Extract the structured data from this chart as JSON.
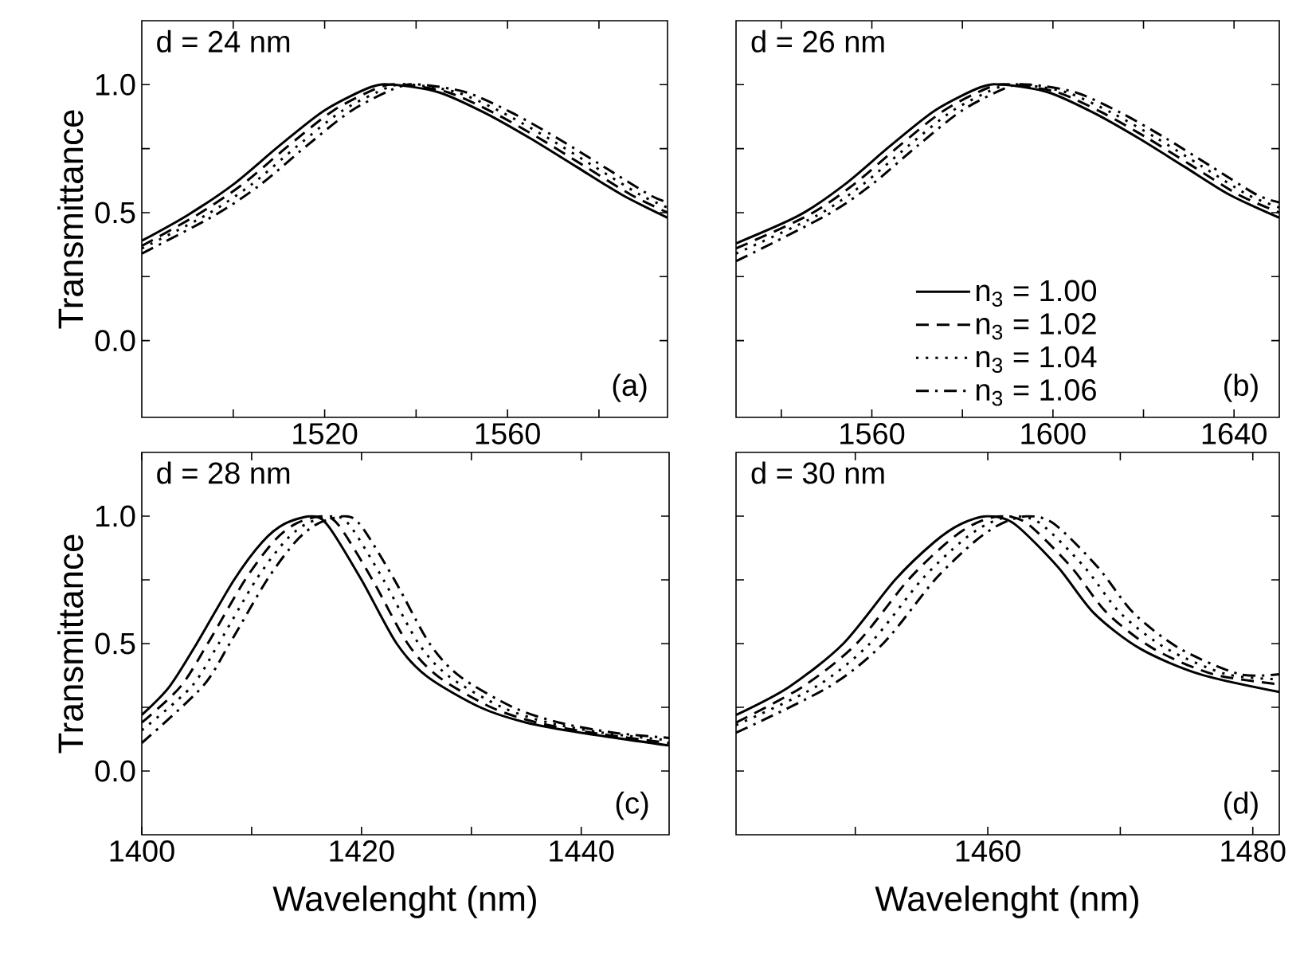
{
  "chart_data": [
    {
      "type": "line",
      "ylabel": "Transmittance",
      "annotations": [
        "d = 24 nm",
        "(a)"
      ],
      "xlim": [
        1480,
        1595
      ],
      "ylim": [
        -0.3,
        1.25
      ],
      "xticks": [
        {
          "value": 1500,
          "label": null
        },
        1520,
        {
          "value": 1540,
          "label": null
        },
        1560,
        {
          "value": 1580,
          "label": null
        }
      ],
      "yticks": [
        {
          "value": 0,
          "label": "0.0"
        },
        {
          "value": 0.25,
          "label": null
        },
        {
          "value": 0.5,
          "label": "0.5"
        },
        {
          "value": 0.75,
          "label": null
        },
        {
          "value": 1.0,
          "label": "1.0"
        }
      ],
      "series": [
        {
          "color": "#000000",
          "line_style": "solid",
          "x": [
            1480,
            1490,
            1500,
            1510,
            1520,
            1530,
            1535,
            1545,
            1555,
            1565,
            1575,
            1585,
            1595
          ],
          "values": [
            0.39,
            0.49,
            0.61,
            0.76,
            0.9,
            0.99,
            1.0,
            0.97,
            0.89,
            0.79,
            0.68,
            0.57,
            0.48
          ]
        },
        {
          "color": "#000000",
          "line_style": "dashed",
          "x": [
            1480,
            1492,
            1502,
            1512,
            1522,
            1532,
            1537,
            1547,
            1557,
            1567,
            1577,
            1587,
            1595
          ],
          "values": [
            0.37,
            0.49,
            0.61,
            0.76,
            0.9,
            0.99,
            1.0,
            0.97,
            0.89,
            0.79,
            0.68,
            0.57,
            0.5
          ]
        },
        {
          "color": "#000000",
          "line_style": "dotted",
          "x": [
            1480,
            1494,
            1504,
            1514,
            1524,
            1534,
            1539,
            1549,
            1559,
            1569,
            1579,
            1589,
            1595
          ],
          "values": [
            0.36,
            0.49,
            0.61,
            0.76,
            0.9,
            0.99,
            1.0,
            0.97,
            0.89,
            0.79,
            0.68,
            0.57,
            0.52
          ]
        },
        {
          "color": "#000000",
          "line_style": "dashdot",
          "x": [
            1480,
            1496,
            1506,
            1516,
            1526,
            1536,
            1541,
            1551,
            1561,
            1571,
            1581,
            1591,
            1595
          ],
          "values": [
            0.34,
            0.49,
            0.61,
            0.76,
            0.9,
            0.99,
            1.0,
            0.97,
            0.89,
            0.79,
            0.68,
            0.57,
            0.54
          ]
        }
      ]
    },
    {
      "type": "line",
      "annotations": [
        "d = 26 nm",
        "(b)"
      ],
      "xlim": [
        1530,
        1650
      ],
      "ylim": [
        -0.3,
        1.25
      ],
      "tick_labels": "x",
      "legend": "bottom",
      "xticks": [
        {
          "value": 1540,
          "label": null
        },
        1560,
        {
          "value": 1580,
          "label": null
        },
        1600,
        {
          "value": 1620,
          "label": null
        },
        1640
      ],
      "yticks": [
        {
          "value": 0,
          "label": null
        },
        {
          "value": 0.25,
          "label": null
        },
        {
          "value": 0.5,
          "label": null
        },
        {
          "value": 0.75,
          "label": null
        },
        {
          "value": 1.0,
          "label": null
        }
      ],
      "series": [
        {
          "name": "n$_{3}$ = 1.00",
          "color": "#000000",
          "line_style": "solid",
          "x": [
            1530,
            1544,
            1554,
            1564,
            1574,
            1584,
            1589,
            1599,
            1609,
            1619,
            1629,
            1639,
            1650
          ],
          "values": [
            0.38,
            0.49,
            0.61,
            0.76,
            0.9,
            0.99,
            1.0,
            0.97,
            0.89,
            0.79,
            0.68,
            0.57,
            0.48
          ]
        },
        {
          "name": "n$_{3}$ = 1.02",
          "color": "#000000",
          "line_style": "dashed",
          "x": [
            1530,
            1546,
            1556,
            1566,
            1576,
            1586,
            1591,
            1601,
            1611,
            1621,
            1631,
            1641,
            1650
          ],
          "values": [
            0.36,
            0.49,
            0.61,
            0.76,
            0.9,
            0.99,
            1.0,
            0.97,
            0.89,
            0.79,
            0.68,
            0.57,
            0.5
          ]
        },
        {
          "name": "n$_{3}$ = 1.04",
          "color": "#000000",
          "line_style": "dotted",
          "x": [
            1530,
            1548,
            1558,
            1568,
            1578,
            1588,
            1593,
            1603,
            1613,
            1623,
            1633,
            1643,
            1650
          ],
          "values": [
            0.34,
            0.49,
            0.61,
            0.76,
            0.9,
            0.99,
            1.0,
            0.97,
            0.89,
            0.79,
            0.68,
            0.57,
            0.52
          ]
        },
        {
          "name": "n$_{3}$ = 1.06",
          "color": "#000000",
          "line_style": "dashdot",
          "x": [
            1530,
            1550,
            1560,
            1570,
            1580,
            1590,
            1595,
            1605,
            1615,
            1625,
            1635,
            1645,
            1650
          ],
          "values": [
            0.31,
            0.49,
            0.61,
            0.76,
            0.9,
            0.99,
            1.0,
            0.97,
            0.89,
            0.79,
            0.68,
            0.57,
            0.54
          ]
        }
      ]
    },
    {
      "type": "line",
      "xlabel": "Wavelenght (nm)",
      "ylabel": "Transmittance",
      "annotations": [
        "d = 28 nm",
        "(c)"
      ],
      "xlim": [
        1400,
        1448
      ],
      "ylim": [
        -0.25,
        1.25
      ],
      "xticks": [
        1400,
        {
          "value": 1410,
          "label": null
        },
        1420,
        {
          "value": 1430,
          "label": null
        },
        1440
      ],
      "yticks": [
        {
          "value": 0,
          "label": "0.0"
        },
        {
          "value": 0.25,
          "label": null
        },
        {
          "value": 0.5,
          "label": "0.5"
        },
        {
          "value": 0.75,
          "label": null
        },
        {
          "value": 1.0,
          "label": "1.0"
        }
      ],
      "series": [
        {
          "color": "#000000",
          "line_style": "solid",
          "x": [
            1400,
            1402.5,
            1405,
            1408.4,
            1411,
            1413,
            1415.5,
            1417,
            1420,
            1423.2,
            1426,
            1430.8,
            1435,
            1440,
            1448
          ],
          "values": [
            0.22,
            0.33,
            0.5,
            0.75,
            0.9,
            0.97,
            1.0,
            0.96,
            0.75,
            0.5,
            0.37,
            0.25,
            0.19,
            0.15,
            0.1
          ]
        },
        {
          "color": "#000000",
          "line_style": "dashed",
          "x": [
            1400,
            1403.5,
            1406,
            1409.4,
            1412,
            1414,
            1416.5,
            1418,
            1421,
            1424.2,
            1427,
            1431.8,
            1436,
            1441,
            1448
          ],
          "values": [
            0.19,
            0.33,
            0.5,
            0.75,
            0.9,
            0.97,
            1.0,
            0.96,
            0.75,
            0.5,
            0.37,
            0.25,
            0.19,
            0.15,
            0.11
          ]
        },
        {
          "color": "#000000",
          "line_style": "dotted",
          "x": [
            1400,
            1404.5,
            1407,
            1410.4,
            1413,
            1415,
            1417.5,
            1419,
            1422,
            1425.2,
            1428,
            1432.8,
            1437,
            1442,
            1448
          ],
          "values": [
            0.16,
            0.33,
            0.5,
            0.75,
            0.9,
            0.97,
            1.0,
            0.96,
            0.75,
            0.5,
            0.37,
            0.25,
            0.19,
            0.15,
            0.12
          ]
        },
        {
          "color": "#000000",
          "line_style": "dashdot",
          "x": [
            1400,
            1405.5,
            1408,
            1411.4,
            1414,
            1416,
            1418.5,
            1420,
            1423,
            1426.2,
            1429,
            1433.8,
            1438,
            1443,
            1448
          ],
          "values": [
            0.11,
            0.33,
            0.5,
            0.75,
            0.9,
            0.97,
            1.0,
            0.96,
            0.75,
            0.5,
            0.37,
            0.25,
            0.19,
            0.15,
            0.13
          ]
        }
      ]
    },
    {
      "type": "line",
      "xlabel": "Wavelenght (nm)",
      "annotations": [
        "d = 30 nm",
        "(d)"
      ],
      "xlim": [
        1441,
        1482
      ],
      "ylim": [
        -0.25,
        1.25
      ],
      "tick_labels": "x",
      "xticks": [
        {
          "value": 1450,
          "label": null
        },
        1460,
        {
          "value": 1470,
          "label": null
        },
        1480
      ],
      "yticks": [
        {
          "value": 0,
          "label": null
        },
        {
          "value": 0.25,
          "label": null
        },
        {
          "value": 0.5,
          "label": null
        },
        {
          "value": 0.75,
          "label": null
        },
        {
          "value": 1.0,
          "label": null
        }
      ],
      "series": [
        {
          "color": "#000000",
          "line_style": "solid",
          "x": [
            1441,
            1445,
            1449.1,
            1453,
            1456,
            1458,
            1460,
            1462,
            1465.3,
            1468,
            1471.5,
            1476,
            1482
          ],
          "values": [
            0.22,
            0.33,
            0.5,
            0.75,
            0.9,
            0.97,
            1.0,
            0.97,
            0.8,
            0.62,
            0.48,
            0.38,
            0.31
          ]
        },
        {
          "color": "#000000",
          "line_style": "dashed",
          "x": [
            1441,
            1446,
            1450.1,
            1454,
            1457,
            1459,
            1461,
            1463,
            1466.3,
            1469,
            1472.5,
            1477,
            1482
          ],
          "values": [
            0.19,
            0.33,
            0.5,
            0.75,
            0.9,
            0.97,
            1.0,
            0.97,
            0.8,
            0.62,
            0.48,
            0.38,
            0.34
          ]
        },
        {
          "color": "#000000",
          "line_style": "dotted",
          "x": [
            1441,
            1447,
            1451.1,
            1455,
            1458,
            1460,
            1462,
            1464,
            1467.3,
            1470,
            1473.5,
            1478,
            1482
          ],
          "values": [
            0.18,
            0.33,
            0.5,
            0.75,
            0.9,
            0.97,
            1.0,
            0.97,
            0.8,
            0.62,
            0.48,
            0.38,
            0.36
          ]
        },
        {
          "color": "#000000",
          "line_style": "dashdot",
          "x": [
            1441,
            1448,
            1452.1,
            1456,
            1459,
            1461,
            1463,
            1465,
            1468.3,
            1471,
            1474.5,
            1479,
            1482
          ],
          "values": [
            0.15,
            0.33,
            0.5,
            0.75,
            0.9,
            0.97,
            1.0,
            0.97,
            0.8,
            0.62,
            0.48,
            0.38,
            0.38
          ]
        }
      ]
    }
  ]
}
